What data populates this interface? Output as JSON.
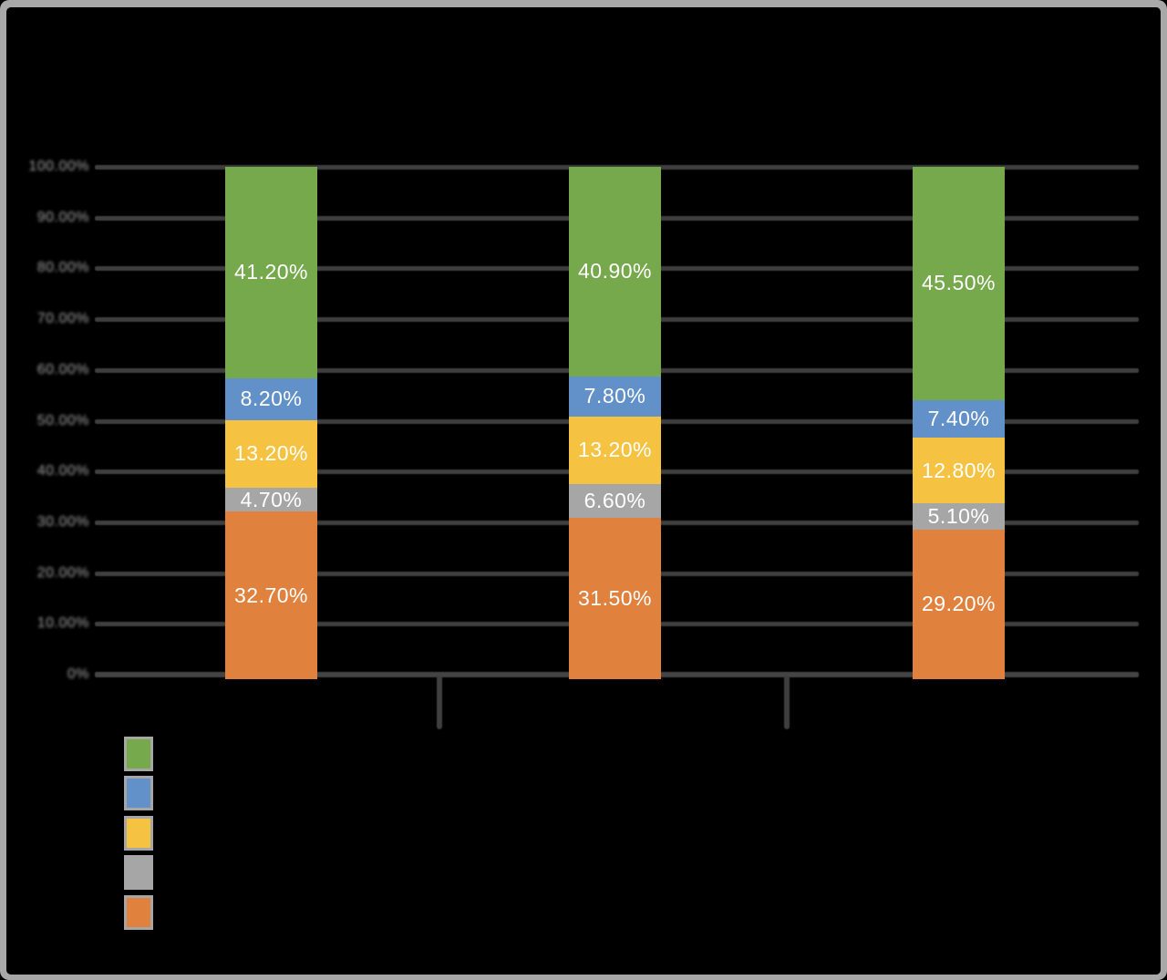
{
  "chart_data": {
    "type": "bar",
    "variant": "stacked-100-percent",
    "orientation": "vertical-columns",
    "title": "",
    "categories": [
      "",
      "",
      ""
    ],
    "stack_order": "bottom-to-top",
    "series": [
      {
        "color_name": "orange",
        "color": "#E0813E",
        "values": [
          32.7,
          31.5,
          29.2
        ],
        "labels": [
          "32.70%",
          "31.50%",
          "29.20%"
        ]
      },
      {
        "color_name": "gray",
        "color": "#A6A6A6",
        "values": [
          4.7,
          6.6,
          5.1
        ],
        "labels": [
          "4.70%",
          "6.60%",
          "5.10%"
        ]
      },
      {
        "color_name": "yellow",
        "color": "#F6C242",
        "values": [
          13.2,
          13.2,
          12.8
        ],
        "labels": [
          "13.20%",
          "13.20%",
          "12.80%"
        ]
      },
      {
        "color_name": "blue",
        "color": "#6191C8",
        "values": [
          8.2,
          7.8,
          7.4
        ],
        "labels": [
          "8.20%",
          "7.80%",
          "7.40%"
        ]
      },
      {
        "color_name": "green",
        "color": "#76A84C",
        "values": [
          41.2,
          40.9,
          45.5
        ],
        "labels": [
          "41.20%",
          "40.90%",
          "45.50%"
        ]
      }
    ],
    "ylim": [
      0,
      100
    ],
    "y_tick_labels": [
      "100.00%",
      "90.00%",
      "80.00%",
      "70.00%",
      "60.00%",
      "50.00%",
      "40.00%",
      "30.00%",
      "20.00%",
      "10.00%",
      "0%"
    ],
    "grid": true,
    "data_labels": true,
    "legend_position": "bottom-left",
    "legend_swatch_colors": [
      "#76A84C",
      "#6191C8",
      "#F6C242",
      "#A6A6A6",
      "#E0813E"
    ]
  },
  "colors": {
    "background": "#000000",
    "frame_border": "#A8A8A8",
    "gridline": "#3F3F3F",
    "axis_line": "#444444",
    "y_tick_label": "#A2A2A2",
    "data_label": "#FFFFFF",
    "legend_tile": "#A6A6A6"
  }
}
